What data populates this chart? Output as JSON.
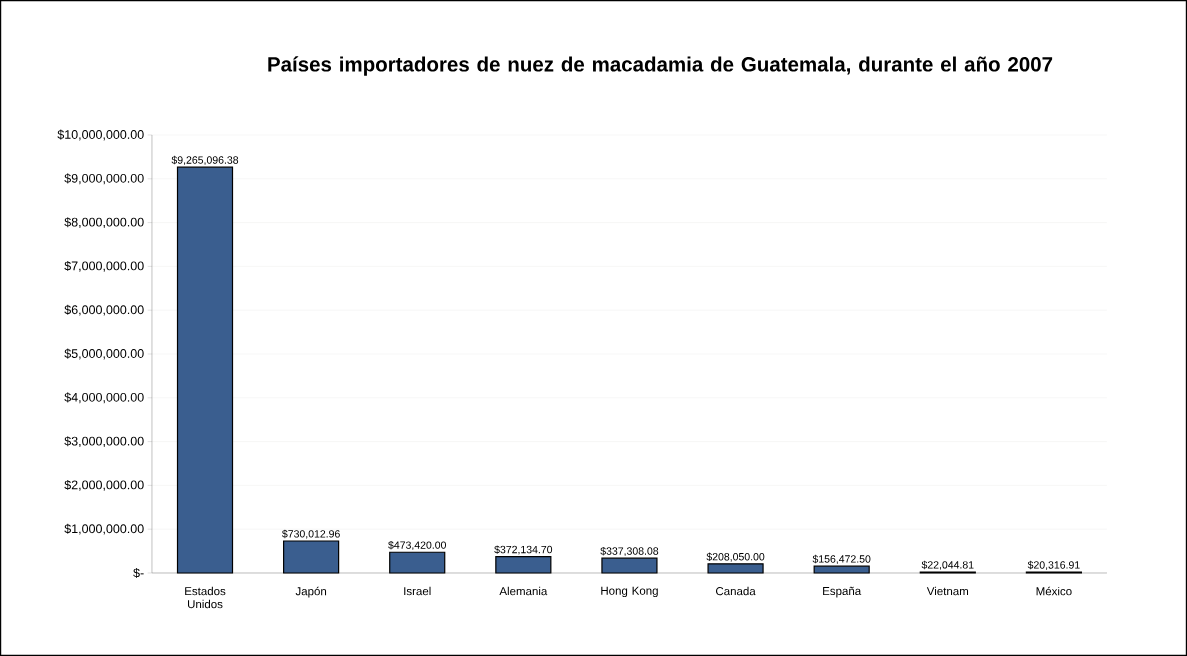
{
  "chart_data": {
    "type": "bar",
    "title": "Países importadores de nuez de macadamia de Guatemala, durante el año 2007",
    "categories": [
      "Estados Unidos",
      "Japón",
      "Israel",
      "Alemania",
      "Hong Kong",
      "Canada",
      "España",
      "Vietnam",
      "México"
    ],
    "values": [
      9265096.38,
      730012.96,
      473420.0,
      372134.7,
      337308.08,
      208050.0,
      156472.5,
      22044.81,
      20316.91
    ],
    "value_labels": [
      "$9,265,096.38",
      "$730,012.96",
      "$473,420.00",
      "$372,134.70",
      "$337,308.08",
      "$208,050.00",
      "$156,472.50",
      "$22,044.81",
      "$20,316.91"
    ],
    "color": "#3a5e8f",
    "ylim": [
      0,
      10000000
    ],
    "yticks": [
      {
        "value": 0,
        "label": "$-"
      },
      {
        "value": 1000000,
        "label": "$1,000,000.00"
      },
      {
        "value": 2000000,
        "label": "$2,000,000.00"
      },
      {
        "value": 3000000,
        "label": "$3,000,000.00"
      },
      {
        "value": 4000000,
        "label": "$4,000,000.00"
      },
      {
        "value": 5000000,
        "label": "$5,000,000.00"
      },
      {
        "value": 6000000,
        "label": "$6,000,000.00"
      },
      {
        "value": 7000000,
        "label": "$7,000,000.00"
      },
      {
        "value": 8000000,
        "label": "$8,000,000.00"
      },
      {
        "value": 9000000,
        "label": "$9,000,000.00"
      },
      {
        "value": 10000000,
        "label": "$10,000,000.00"
      }
    ],
    "grid": "y"
  }
}
